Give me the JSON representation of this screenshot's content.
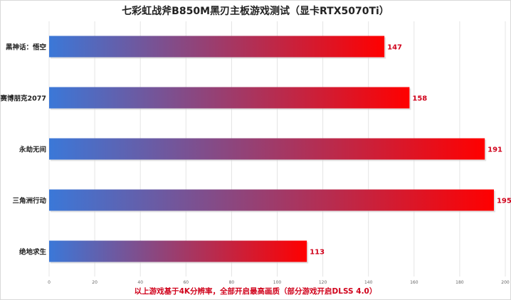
{
  "chart_data": {
    "type": "bar",
    "orientation": "horizontal",
    "title": "七彩虹战斧B850M黑刃主板游戏测试（显卡RTX5070Ti）",
    "note": "以上游戏基于4K分辨率，全部开启最高画质（部分游戏开启DLSS 4.0）",
    "categories": [
      "黑神话：悟空",
      "赛博朋克2077",
      "永劫无间",
      "三角洲行动",
      "绝地求生"
    ],
    "values": [
      147,
      158,
      191,
      195,
      113
    ],
    "xlim": [
      0,
      200
    ],
    "xticks": [
      0,
      20,
      40,
      60,
      80,
      100,
      120,
      140,
      160,
      180,
      200
    ],
    "grid": true,
    "bar_gradient": [
      "#3b78d8",
      "#ff0000"
    ],
    "value_label_color": "#d0021b"
  }
}
